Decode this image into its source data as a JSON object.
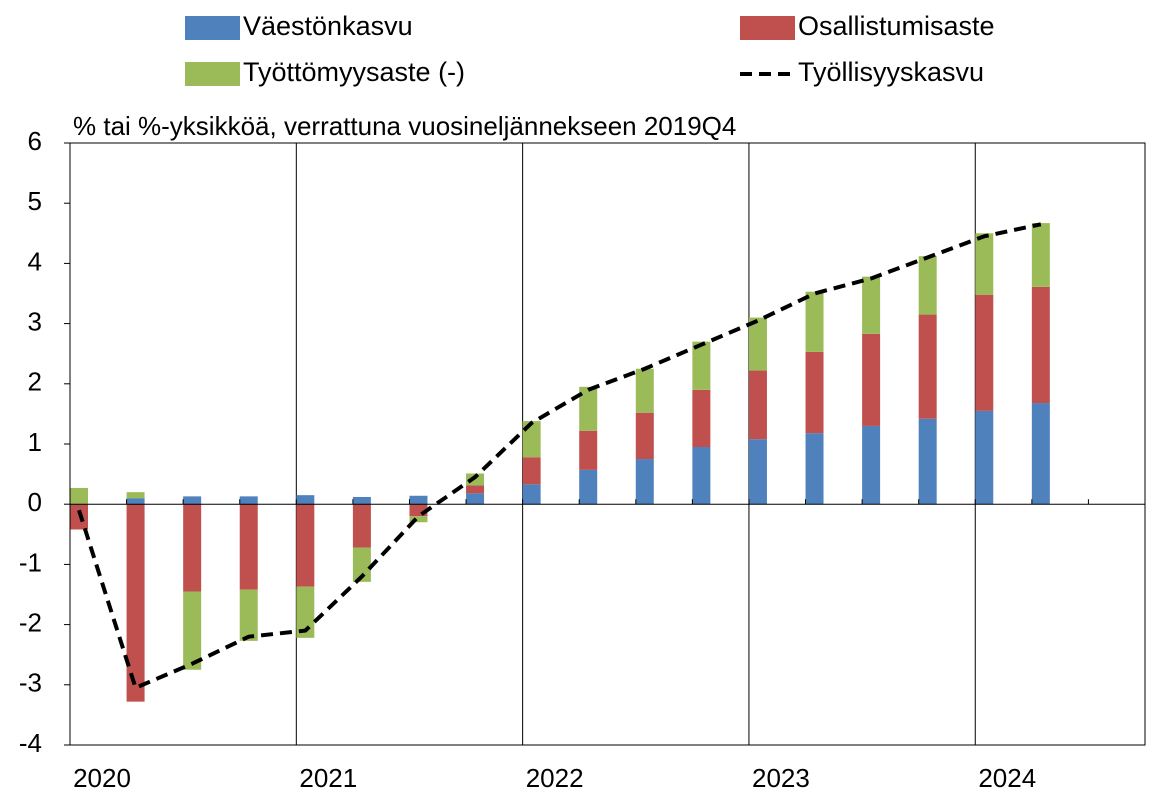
{
  "chart_data": {
    "type": "bar",
    "stacked": true,
    "subtitle": "% tai %-yksikköä, verrattuna vuosineljännekseen 2019Q4",
    "x_labels": [
      "2020",
      "2021",
      "2022",
      "2023",
      "2024"
    ],
    "ylim": [
      -4,
      6
    ],
    "yticks": [
      -4,
      -3,
      -2,
      -1,
      0,
      1,
      2,
      3,
      4,
      5,
      6
    ],
    "series": [
      {
        "name": "Väestönkasvu",
        "type": "bar",
        "color": "#4f81bd",
        "values": [
          0.0,
          0.1,
          0.13,
          0.13,
          0.15,
          0.12,
          0.14,
          0.18,
          0.33,
          0.57,
          0.75,
          0.95,
          1.08,
          1.18,
          1.3,
          1.42,
          1.55,
          1.68
        ]
      },
      {
        "name": "Osallistumisaste",
        "type": "bar",
        "color": "#c0504d",
        "values": [
          -0.42,
          -3.28,
          -1.45,
          -1.42,
          -1.37,
          -0.72,
          -0.2,
          0.13,
          0.45,
          0.65,
          0.77,
          0.95,
          1.14,
          1.35,
          1.53,
          1.73,
          1.93,
          1.93
        ]
      },
      {
        "name": "Työttömyysaste (-)",
        "type": "bar",
        "color": "#9bbb59",
        "values": [
          0.27,
          0.1,
          -1.3,
          -0.85,
          -0.85,
          -0.57,
          -0.1,
          0.2,
          0.6,
          0.73,
          0.73,
          0.8,
          0.88,
          1.0,
          0.95,
          0.97,
          1.02,
          1.06
        ]
      },
      {
        "name": "Työllisyyskasvu",
        "type": "line",
        "color": "#000000",
        "dashed": true,
        "values": [
          -0.1,
          -3.05,
          -2.65,
          -2.2,
          -2.1,
          -1.2,
          -0.2,
          0.45,
          1.35,
          1.9,
          2.25,
          2.65,
          3.05,
          3.5,
          3.75,
          4.1,
          4.45,
          4.65
        ]
      }
    ]
  }
}
